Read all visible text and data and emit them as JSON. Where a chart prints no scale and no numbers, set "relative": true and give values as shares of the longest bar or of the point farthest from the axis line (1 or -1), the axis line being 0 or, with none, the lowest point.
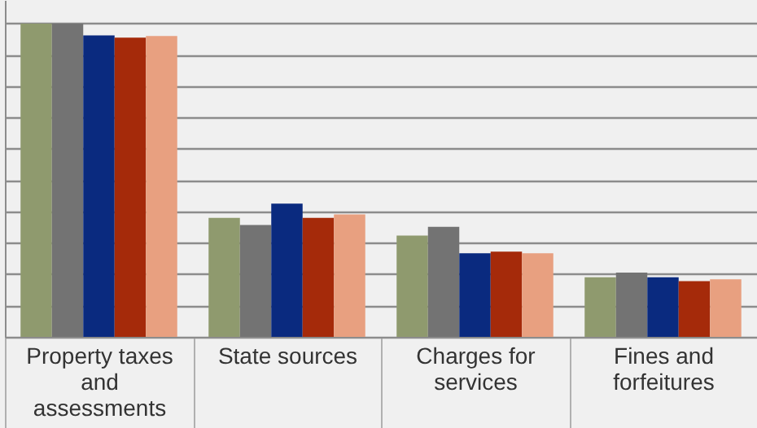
{
  "chart_data": {
    "type": "bar",
    "relative": true,
    "grid": "y",
    "legend": false,
    "categories": [
      "Property taxes and assessments",
      "State sources",
      "Charges for services",
      "Fines and forfeitures"
    ],
    "series": [
      {
        "color": "#8f9a6e",
        "values": [
          1,
          0.38,
          0.323,
          0.19
        ]
      },
      {
        "color": "#737373",
        "values": [
          1,
          0.357,
          0.351,
          0.205
        ]
      },
      {
        "color": "#0a2a7f",
        "values": [
          0.962,
          0.425,
          0.267,
          0.19
        ]
      },
      {
        "color": "#a52a0a",
        "values": [
          0.955,
          0.38,
          0.272,
          0.178
        ]
      },
      {
        "color": "#e8a080",
        "values": [
          0.96,
          0.391,
          0.267,
          0.184
        ]
      }
    ]
  }
}
